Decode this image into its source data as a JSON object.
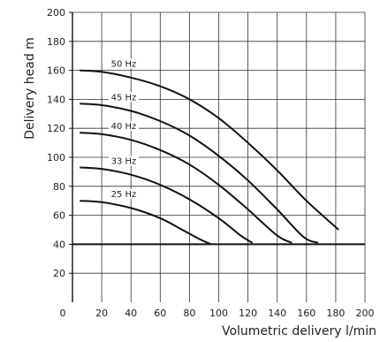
{
  "chart_data": {
    "type": "line",
    "title": "",
    "xlabel": "Volumetric delivery l/min",
    "ylabel": "Delivery head m",
    "xlim": [
      0,
      200
    ],
    "ylim": [
      0,
      200
    ],
    "x_ticks": [
      0,
      20,
      40,
      60,
      80,
      100,
      120,
      140,
      160,
      180,
      200
    ],
    "y_ticks": [
      20,
      40,
      60,
      80,
      100,
      120,
      140,
      160,
      180,
      200
    ],
    "grid": true,
    "reference_line_y": 40,
    "series": [
      {
        "name": "50 Hz",
        "points": [
          [
            5,
            160
          ],
          [
            20,
            159
          ],
          [
            40,
            155
          ],
          [
            60,
            149
          ],
          [
            80,
            140
          ],
          [
            100,
            127
          ],
          [
            120,
            110
          ],
          [
            140,
            91
          ],
          [
            160,
            70
          ],
          [
            182,
            50
          ]
        ]
      },
      {
        "name": "45 Hz",
        "points": [
          [
            5,
            137
          ],
          [
            20,
            136
          ],
          [
            40,
            132
          ],
          [
            60,
            125
          ],
          [
            80,
            115
          ],
          [
            100,
            101
          ],
          [
            120,
            84
          ],
          [
            140,
            64
          ],
          [
            158,
            45
          ],
          [
            168,
            41
          ]
        ]
      },
      {
        "name": "40 Hz",
        "points": [
          [
            5,
            117
          ],
          [
            20,
            116
          ],
          [
            40,
            112
          ],
          [
            60,
            105
          ],
          [
            80,
            95
          ],
          [
            100,
            81
          ],
          [
            120,
            64
          ],
          [
            140,
            46
          ],
          [
            150,
            41
          ]
        ]
      },
      {
        "name": "33 Hz",
        "points": [
          [
            5,
            93
          ],
          [
            20,
            92
          ],
          [
            40,
            88
          ],
          [
            60,
            81
          ],
          [
            80,
            71
          ],
          [
            100,
            58
          ],
          [
            115,
            46
          ],
          [
            123,
            41
          ]
        ]
      },
      {
        "name": "25 Hz",
        "points": [
          [
            5,
            70
          ],
          [
            20,
            69
          ],
          [
            40,
            65
          ],
          [
            60,
            58
          ],
          [
            75,
            50
          ],
          [
            88,
            43
          ],
          [
            95,
            40
          ]
        ]
      }
    ],
    "style": {
      "axis_color": "#111111",
      "grid_color": "#333333",
      "curve_color": "#111111",
      "background": "#ffffff"
    }
  }
}
